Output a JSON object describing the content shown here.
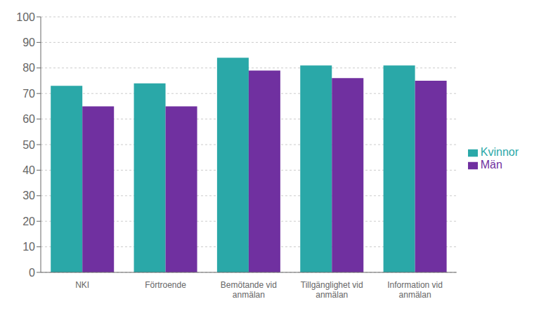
{
  "chart_data": {
    "type": "bar",
    "categories": [
      "NKI",
      "Förtroende",
      "Bemötande vid\nanmälan",
      "Tillgänglighet vid\nanmälan",
      "Information vid\nanmälan"
    ],
    "series": [
      {
        "name": "Kvinnor",
        "color": "#2AA8A8",
        "values": [
          73,
          74,
          84,
          81,
          81
        ]
      },
      {
        "name": "Män",
        "color": "#7030A0",
        "values": [
          65,
          65,
          79,
          76,
          75
        ]
      }
    ],
    "ylim": [
      0,
      100
    ],
    "yticks": [
      0,
      10,
      20,
      30,
      40,
      50,
      60,
      70,
      80,
      90,
      100
    ],
    "grid": true,
    "legend": "right"
  }
}
